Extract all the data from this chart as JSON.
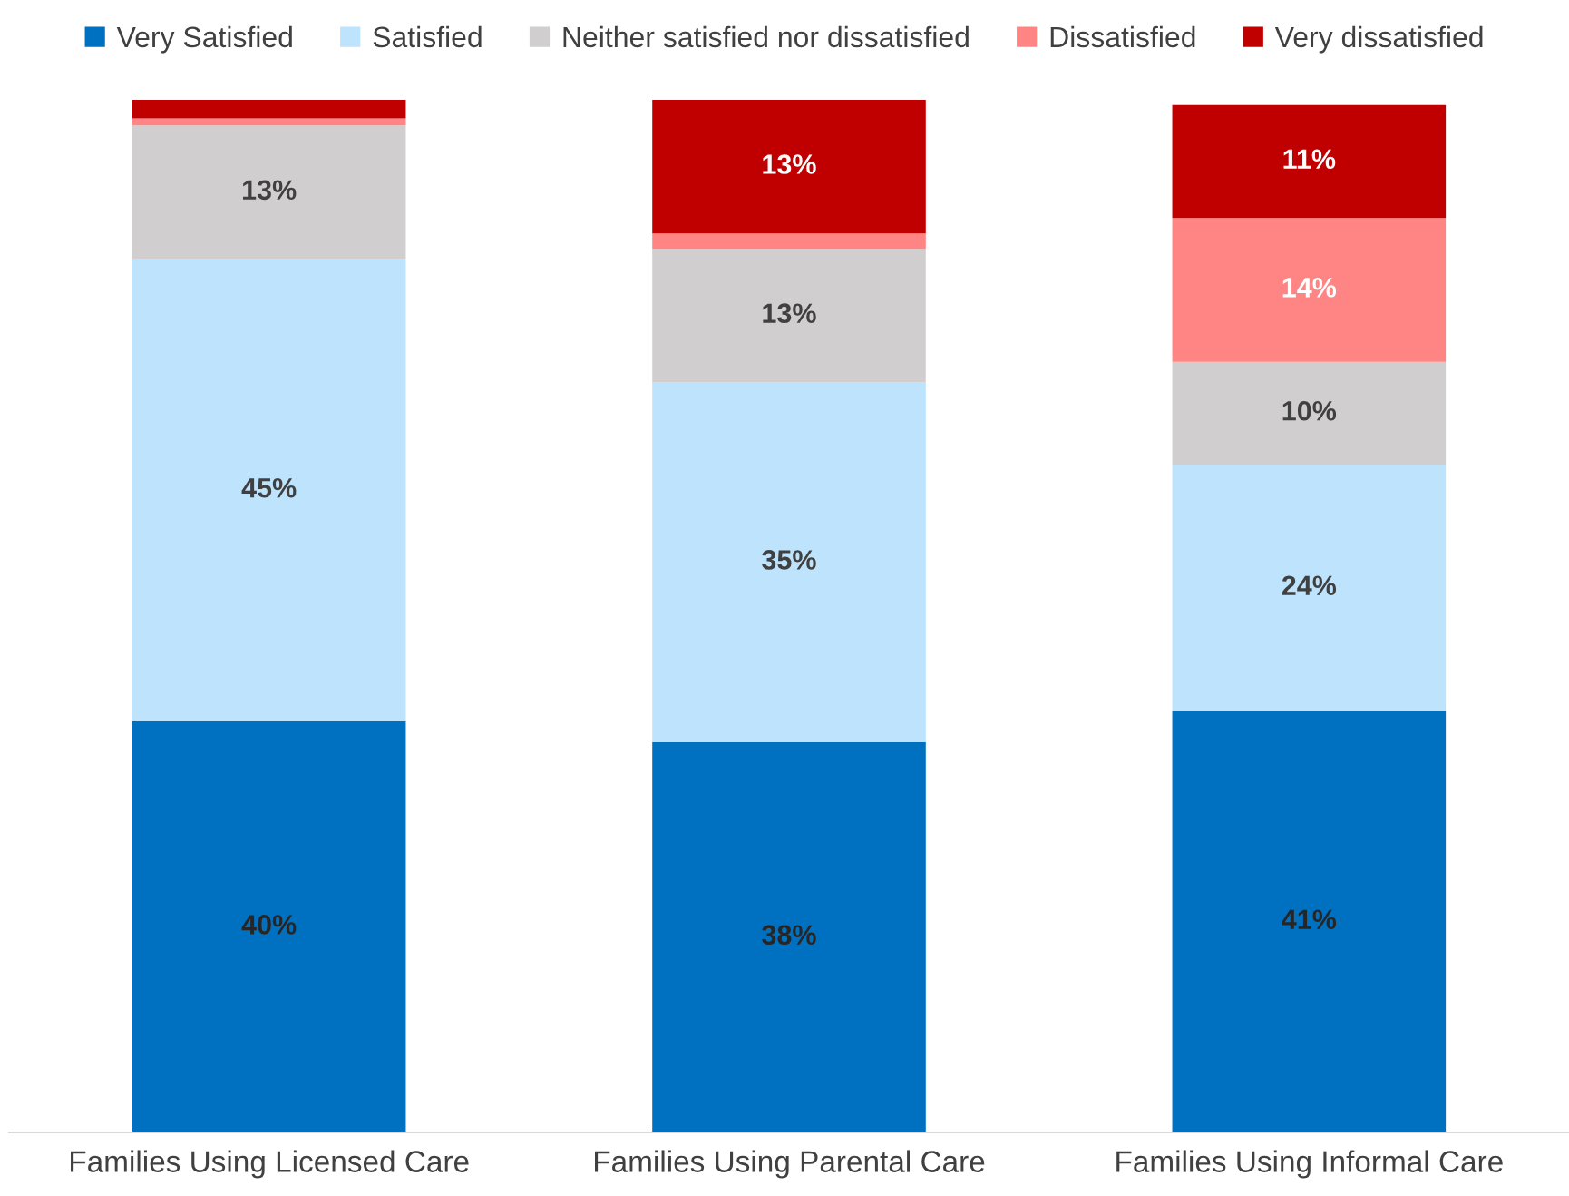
{
  "chart_data": {
    "type": "bar",
    "stacked": true,
    "legend": "top",
    "grid": false,
    "tick_labels": "x",
    "categories": [
      "Families Using Licensed Care",
      "Families Using Parental Care",
      "Families Using Informal Care"
    ],
    "series": [
      {
        "name": "Very Satisfied",
        "color": "#0070c0",
        "values": [
          40,
          38,
          41
        ],
        "value_labels": [
          "40%",
          "38%",
          "41%"
        ]
      },
      {
        "name": "Satisfied",
        "color": "#bde3fd",
        "values": [
          45,
          35,
          24
        ],
        "value_labels": [
          "45%",
          "35%",
          "24%"
        ]
      },
      {
        "name": "Neither satisfied nor dissatisfied",
        "color": "#d0cece",
        "values": [
          13,
          13,
          10
        ],
        "value_labels": [
          "13%",
          "13%",
          "10%"
        ]
      },
      {
        "name": "Dissatisfied",
        "color": "#ff8585",
        "values": [
          0.7,
          1.5,
          14
        ],
        "value_labels": [
          null,
          null,
          "14%"
        ]
      },
      {
        "name": "Very dissatisfied",
        "color": "#c00000",
        "values": [
          1.8,
          13,
          11
        ],
        "value_labels": [
          null,
          "13%",
          "11%"
        ]
      }
    ]
  }
}
